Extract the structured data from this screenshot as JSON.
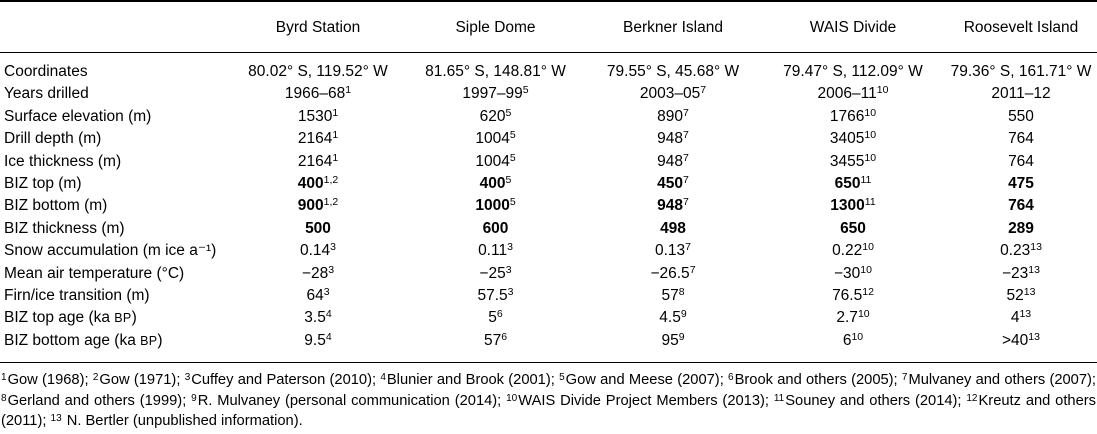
{
  "table": {
    "header": [
      "Byrd Station",
      "Siple Dome",
      "Berkner Island",
      "WAIS Divide",
      "Roosevelt Island"
    ],
    "rows": [
      {
        "label": "Coordinates",
        "cells": [
          {
            "v": "80.02° S, 119.52° W"
          },
          {
            "v": "81.65° S, 148.81° W"
          },
          {
            "v": "79.55° S, 45.68° W"
          },
          {
            "v": "79.47° S, 112.09° W"
          },
          {
            "v": "79.36° S, 161.71° W"
          }
        ]
      },
      {
        "label": "Years drilled",
        "cells": [
          {
            "v": "1966–68",
            "sup": "1"
          },
          {
            "v": "1997–99",
            "sup": "5"
          },
          {
            "v": "2003–05",
            "sup": "7"
          },
          {
            "v": "2006–11",
            "sup": "10"
          },
          {
            "v": "2011–12"
          }
        ]
      },
      {
        "label": "Surface elevation (m)",
        "cells": [
          {
            "v": "1530",
            "sup": "1"
          },
          {
            "v": "620",
            "sup": "5"
          },
          {
            "v": "890",
            "sup": "7"
          },
          {
            "v": "1766",
            "sup": "10"
          },
          {
            "v": "550"
          }
        ]
      },
      {
        "label": "Drill depth (m)",
        "cells": [
          {
            "v": "2164",
            "sup": "1"
          },
          {
            "v": "1004",
            "sup": "5"
          },
          {
            "v": "948",
            "sup": "7"
          },
          {
            "v": "3405",
            "sup": "10"
          },
          {
            "v": "764"
          }
        ]
      },
      {
        "label": "Ice thickness (m)",
        "cells": [
          {
            "v": "2164",
            "sup": "1"
          },
          {
            "v": "1004",
            "sup": "5"
          },
          {
            "v": "948",
            "sup": "7"
          },
          {
            "v": "3455",
            "sup": "10"
          },
          {
            "v": "764"
          }
        ]
      },
      {
        "label": "BIZ top (m)",
        "cells": [
          {
            "v": "400",
            "sup": "1,2",
            "b": true
          },
          {
            "v": "400",
            "sup": "5",
            "b": true
          },
          {
            "v": "450",
            "sup": "7",
            "b": true
          },
          {
            "v": "650",
            "sup": "11",
            "b": true
          },
          {
            "v": "475",
            "b": true
          }
        ]
      },
      {
        "label": "BIZ bottom (m)",
        "cells": [
          {
            "v": "900",
            "sup": "1,2",
            "b": true
          },
          {
            "v": "1000",
            "sup": "5",
            "b": true
          },
          {
            "v": "948",
            "sup": "7",
            "b": true
          },
          {
            "v": "1300",
            "sup": "11",
            "b": true
          },
          {
            "v": "764",
            "b": true
          }
        ]
      },
      {
        "label": "BIZ thickness (m)",
        "cells": [
          {
            "v": "500",
            "b": true
          },
          {
            "v": "600",
            "b": true
          },
          {
            "v": "498",
            "b": true
          },
          {
            "v": "650",
            "b": true
          },
          {
            "v": "289",
            "b": true
          }
        ]
      },
      {
        "label": "Snow accumulation (m ice a⁻¹)",
        "cells": [
          {
            "v": "0.14",
            "sup": "3"
          },
          {
            "v": "0.11",
            "sup": "3"
          },
          {
            "v": "0.13",
            "sup": "7"
          },
          {
            "v": "0.22",
            "sup": "10"
          },
          {
            "v": "0.23",
            "sup": "13"
          }
        ]
      },
      {
        "label": "Mean air temperature (°C)",
        "cells": [
          {
            "v": "−28",
            "sup": "3"
          },
          {
            "v": "−25",
            "sup": "3"
          },
          {
            "v": "−26.5",
            "sup": "7"
          },
          {
            "v": "−30",
            "sup": "10"
          },
          {
            "v": "−23",
            "sup": "13"
          }
        ]
      },
      {
        "label": "Firn/ice transition (m)",
        "cells": [
          {
            "v": "64",
            "sup": "3"
          },
          {
            "v": "57.5",
            "sup": "3"
          },
          {
            "v": "57",
            "sup": "8"
          },
          {
            "v": "76.5",
            "sup": "12"
          },
          {
            "v": "52",
            "sup": "13"
          }
        ]
      },
      {
        "label": "BIZ top age (ka BP)",
        "cells": [
          {
            "v": "3.5",
            "sup": "4"
          },
          {
            "v": "5",
            "sup": "6"
          },
          {
            "v": "4.5",
            "sup": "9"
          },
          {
            "v": "2.7",
            "sup": "10"
          },
          {
            "v": "4",
            "sup": "13"
          }
        ]
      },
      {
        "label": "BIZ bottom age (ka BP)",
        "cells": [
          {
            "v": "9.5",
            "sup": "4"
          },
          {
            "v": "57",
            "sup": "6"
          },
          {
            "v": "95",
            "sup": "9"
          },
          {
            "v": "6",
            "sup": "10"
          },
          {
            "v": ">40",
            "sup": "13"
          }
        ]
      }
    ]
  },
  "footnotes": [
    {
      "sup": "1",
      "text": "Gow (1968)"
    },
    {
      "sup": "2",
      "text": "Gow (1971)"
    },
    {
      "sup": "3",
      "text": "Cuffey and Paterson (2010)"
    },
    {
      "sup": "4",
      "text": "Blunier and Brook (2001)"
    },
    {
      "sup": "5",
      "text": "Gow and Meese (2007)"
    },
    {
      "sup": "6",
      "text": "Brook and others (2005)"
    },
    {
      "sup": "7",
      "text": "Mulvaney and others (2007)"
    },
    {
      "sup": "8",
      "text": "Gerland and others (1999)"
    },
    {
      "sup": "9",
      "text": "R. Mulvaney (personal communication (2014)"
    },
    {
      "sup": "10",
      "text": "WAIS Divide Project Members (2013)"
    },
    {
      "sup": "11",
      "text": "Souney and others (2014)"
    },
    {
      "sup": "12",
      "text": "Kreutz and others (2011)"
    },
    {
      "sup": "13",
      "text": " N. Bertler (unpublished information)"
    }
  ]
}
